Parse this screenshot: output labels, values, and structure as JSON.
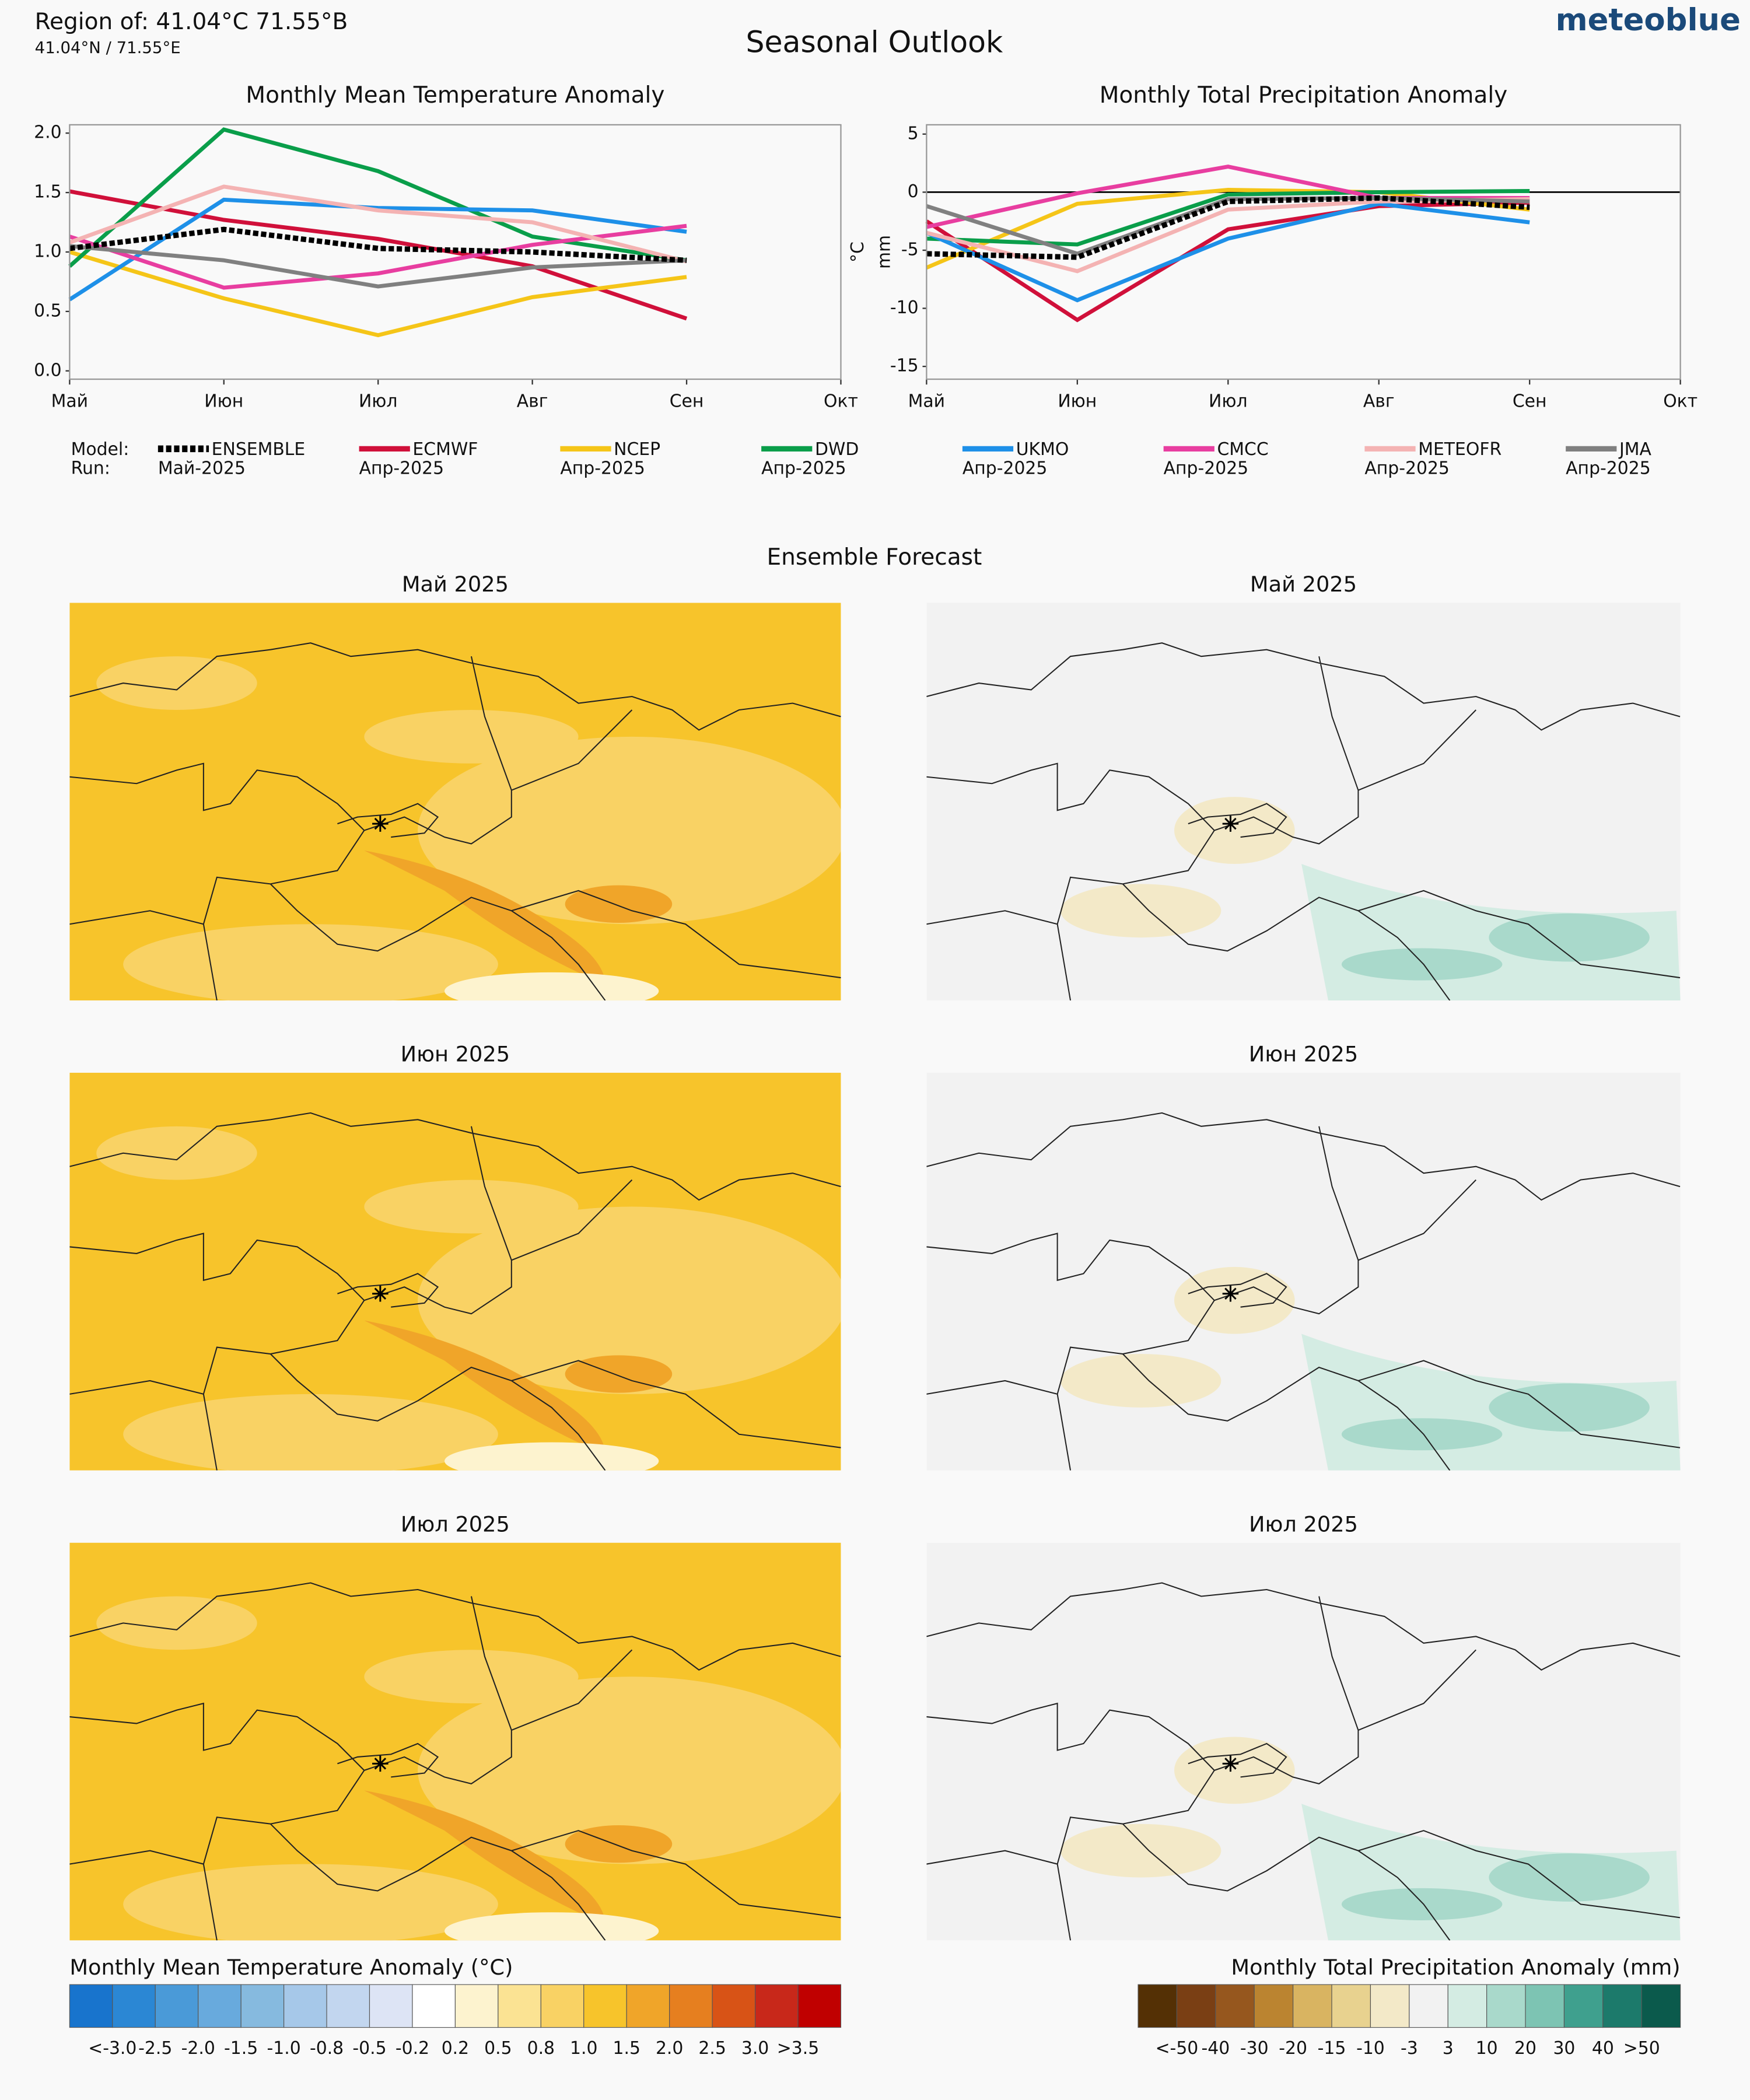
{
  "header": {
    "region": "Region of: 41.04°C 71.55°В",
    "coords": "41.04°N / 71.55°E",
    "title": "Seasonal Outlook",
    "brand": "meteoblue"
  },
  "legend": {
    "model_label": "Model:",
    "run_label": "Run:"
  },
  "chart_data": [
    {
      "type": "line",
      "title": "Monthly Mean Temperature Anomaly",
      "y_label": "°C",
      "categories": [
        "Май",
        "Июн",
        "Июл",
        "Авг",
        "Сен",
        "Окт"
      ],
      "ylim": [
        -0.07,
        2.07
      ],
      "yticks": [
        {
          "value": 0,
          "label": "0.0"
        },
        0.5,
        {
          "value": 1,
          "label": "1.0"
        },
        1.5,
        {
          "value": 2,
          "label": "2.0"
        }
      ],
      "grid": false,
      "zero_line": false,
      "series": [
        {
          "name": "ENSEMBLE",
          "run": "Май-2025",
          "color": "#000000",
          "dashed": true,
          "values": [
            1.03,
            1.19,
            1.03,
            1.0,
            0.93,
            null
          ]
        },
        {
          "name": "ECMWF",
          "run": "Апр-2025",
          "color": "#d0103a",
          "values": [
            1.51,
            1.27,
            1.11,
            0.88,
            0.44,
            null
          ]
        },
        {
          "name": "NCEP",
          "run": "Апр-2025",
          "color": "#f5c518",
          "values": [
            1.0,
            0.61,
            0.3,
            0.62,
            0.79,
            null
          ]
        },
        {
          "name": "DWD",
          "run": "Апр-2025",
          "color": "#0a9e4a",
          "values": [
            0.88,
            2.03,
            1.68,
            1.13,
            0.93,
            null
          ]
        },
        {
          "name": "UKMO",
          "run": "Апр-2025",
          "color": "#1e90e8",
          "values": [
            0.6,
            1.44,
            1.37,
            1.35,
            1.17,
            null
          ]
        },
        {
          "name": "CMCC",
          "run": "Апр-2025",
          "color": "#e83ea0",
          "values": [
            1.13,
            0.7,
            0.82,
            1.06,
            1.22,
            null
          ]
        },
        {
          "name": "METEOFR",
          "run": "Апр-2025",
          "color": "#f4b3b3",
          "values": [
            1.08,
            1.55,
            1.35,
            1.25,
            0.92,
            null
          ]
        },
        {
          "name": "JMA",
          "run": "Апр-2025",
          "color": "#808080",
          "values": [
            1.05,
            0.93,
            0.71,
            0.87,
            0.93,
            null
          ]
        }
      ]
    },
    {
      "type": "line",
      "title": "Monthly Total Precipitation Anomaly",
      "y_label": "mm",
      "categories": [
        "Май",
        "Июн",
        "Июл",
        "Авг",
        "Сен",
        "Окт"
      ],
      "ylim": [
        -16.1,
        5.8
      ],
      "yticks": [
        5,
        0,
        -5,
        -10,
        -15
      ],
      "grid": false,
      "zero_line": true,
      "series": [
        {
          "name": "ENSEMBLE",
          "color": "#000000",
          "dashed": true,
          "values": [
            -5.3,
            -5.6,
            -0.8,
            -0.5,
            -1.3,
            null
          ]
        },
        {
          "name": "ECMWF",
          "color": "#d0103a",
          "values": [
            -2.5,
            -11,
            -3.2,
            -1.2,
            -0.9,
            null
          ]
        },
        {
          "name": "NCEP",
          "color": "#f5c518",
          "values": [
            -6.5,
            -1,
            0.2,
            0,
            -1.5,
            null
          ]
        },
        {
          "name": "DWD",
          "color": "#0a9e4a",
          "values": [
            -4,
            -4.5,
            -0.2,
            0,
            0.1,
            null
          ]
        },
        {
          "name": "UKMO",
          "color": "#1e90e8",
          "values": [
            -3.5,
            -9.3,
            -4,
            -1.0,
            -2.6,
            null
          ]
        },
        {
          "name": "CMCC",
          "color": "#e83ea0",
          "values": [
            -3,
            -0.1,
            2.2,
            -0.5,
            -0.5,
            null
          ]
        },
        {
          "name": "METEOFR",
          "color": "#f4b3b3",
          "values": [
            -3.5,
            -6.8,
            -1.5,
            -0.8,
            -0.6,
            null
          ]
        },
        {
          "name": "JMA",
          "color": "#808080",
          "values": [
            -1.2,
            -5.3,
            -0.6,
            -0.5,
            -0.8,
            null
          ]
        }
      ]
    }
  ],
  "ensemble": {
    "title": "Ensemble Forecast",
    "maps": [
      {
        "title": "Май 2025"
      },
      {
        "title": "Май 2025"
      },
      {
        "title": "Июн 2025"
      },
      {
        "title": "Июн 2025"
      },
      {
        "title": "Июл 2025"
      },
      {
        "title": "Июл 2025"
      }
    ]
  },
  "colorbars": [
    {
      "title": "Monthly Mean Temperature Anomaly (°C)",
      "colors": [
        "#1874cd",
        "#2b87d4",
        "#4a9ad8",
        "#68aadd",
        "#86badf",
        "#a6c8e9",
        "#c2d6ef",
        "#dde4f5",
        "#ffffff",
        "#fdf3cf",
        "#fbe393",
        "#f9d264",
        "#f7c42b",
        "#f0a529",
        "#e67f1f",
        "#d85316",
        "#c8281a",
        "#c00000"
      ],
      "labels": [
        "<-3.0",
        "-2.5",
        "-2.0",
        "-1.5",
        "-1.0",
        "-0.8",
        "-0.5",
        "-0.2",
        "0.2",
        "0.5",
        "0.8",
        "1.0",
        "1.5",
        "2.0",
        "2.5",
        "3.0",
        ">3.5"
      ]
    },
    {
      "title": "Monthly Total Precipitation Anomaly (mm)",
      "colors": [
        "#543005",
        "#7a3f14",
        "#96571e",
        "#bb8430",
        "#d9b461",
        "#e8d28f",
        "#f3e9c8",
        "#f2f2f2",
        "#d4ece3",
        "#a9d9cb",
        "#7dc4b3",
        "#3fa08e",
        "#1c7a6b",
        "#0b5a4c"
      ],
      "labels": [
        "<-50",
        "-40",
        "-30",
        "-20",
        "-15",
        "-10",
        "-3",
        "3",
        "10",
        "20",
        "30",
        "40",
        ">50"
      ]
    }
  ]
}
